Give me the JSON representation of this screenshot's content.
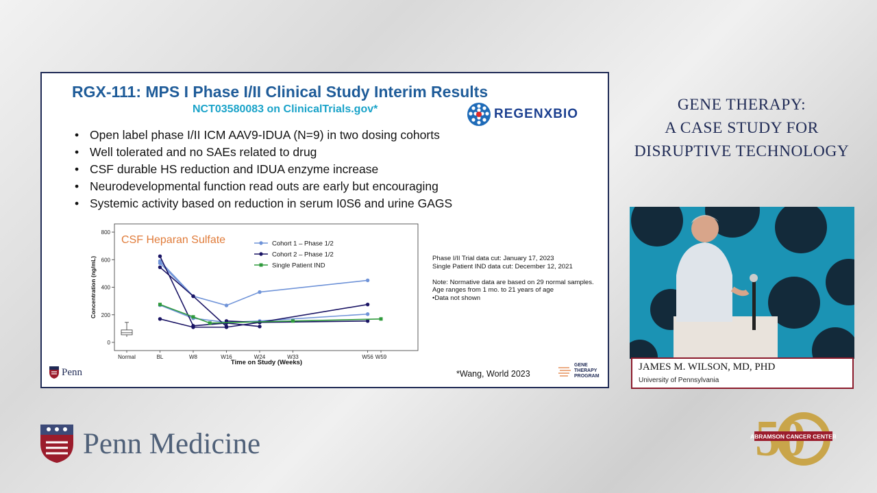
{
  "slide": {
    "title": "RGX-111: MPS I Phase I/II Clinical Study Interim Results",
    "subtitle": "NCT03580083 on ClinicalTrials.gov*",
    "partner_logo_text": "REGENXBIO",
    "bullets": [
      "Open label phase I/II ICM AAV9-IDUA (N=9) in two dosing cohorts",
      "Well tolerated and no SAEs related to drug",
      "CSF durable HS reduction and IDUA enzyme increase",
      "Neurodevelopmental function read outs are early but encouraging",
      "Systemic activity based on reduction in serum I0S6 and urine GAGS"
    ],
    "notes": [
      "Phase I/II Trial data cut:  January 17, 2023",
      "Single Patient IND data cut: December 12, 2021",
      "",
      "Note: Normative data are based on 29 normal samples.",
      "Age ranges from 1 mo. to 21 years of age",
      "•Data not shown"
    ],
    "penn_small_text": "Penn",
    "citation": "*Wang, World 2023",
    "gtp_lines": [
      "GENE",
      "THERAPY",
      "PROGRAM"
    ]
  },
  "chart_data": {
    "type": "line",
    "title": "CSF Heparan Sulfate",
    "xlabel": "Time on Study (Weeks)",
    "ylabel": "Concentration (ng/mL)",
    "categories": [
      "Normal",
      "BL",
      "W8",
      "W16",
      "W24",
      "W33",
      "W56",
      "W59"
    ],
    "category_x": [
      0,
      1,
      2,
      3,
      4,
      5,
      7.25,
      7.65
    ],
    "ylim": [
      0,
      800
    ],
    "yticks": [
      0,
      200,
      400,
      600,
      800
    ],
    "legend_position": "top-center",
    "colors": {
      "cohort1": "#6f93d8",
      "cohort2": "#1a1464",
      "single": "#2f9a3c",
      "title": "#e07b39"
    },
    "normal_box": {
      "min": 40,
      "q1": 55,
      "median": 70,
      "q3": 90,
      "max": 145
    },
    "series": [
      {
        "name": "Cohort 1 – Phase 1/2",
        "color_key": "cohort1",
        "lines": [
          [
            [
              1,
              575
            ],
            [
              2,
              335
            ],
            [
              3,
              268
            ],
            [
              4,
              365
            ],
            [
              7.25,
              450
            ]
          ],
          [
            [
              1,
              590
            ],
            [
              2,
              335
            ]
          ],
          [
            [
              1,
              270
            ],
            [
              2,
              175
            ],
            [
              3,
              145
            ],
            [
              4,
              155
            ],
            [
              7.25,
              205
            ]
          ]
        ]
      },
      {
        "name": "Cohort 2 – Phase 1/2",
        "color_key": "cohort2",
        "lines": [
          [
            [
              1,
              625
            ],
            [
              2,
              120
            ],
            [
              3,
              140
            ],
            [
              4,
              115
            ]
          ],
          [
            [
              1,
              545
            ],
            [
              2,
              335
            ],
            [
              3,
              115
            ]
          ],
          [
            [
              1,
              170
            ],
            [
              2,
              110
            ],
            [
              3,
              110
            ],
            [
              4,
              145
            ],
            [
              7.25,
              275
            ]
          ],
          [
            [
              3,
              155
            ],
            [
              4,
              145
            ],
            [
              7.25,
              155
            ]
          ]
        ]
      },
      {
        "name": "Single Patient IND",
        "color_key": "single",
        "lines": [
          [
            [
              1,
              275
            ],
            [
              2,
              185
            ],
            [
              2.5,
              140
            ],
            [
              5,
              155
            ],
            [
              7.65,
              170
            ]
          ]
        ]
      }
    ]
  },
  "right_title_lines": [
    "GENE THERAPY:",
    "A CASE STUDY FOR",
    "DISRUPTIVE TECHNOLOGY"
  ],
  "speaker": {
    "name": "JAMES M. WILSON, MD, PHD",
    "org": "University of Pennsylvania"
  },
  "brand": {
    "penn_medicine": "Penn Medicine",
    "cancer_center": "ABRAMSON CANCER CENTER",
    "cancer_years": "50"
  }
}
